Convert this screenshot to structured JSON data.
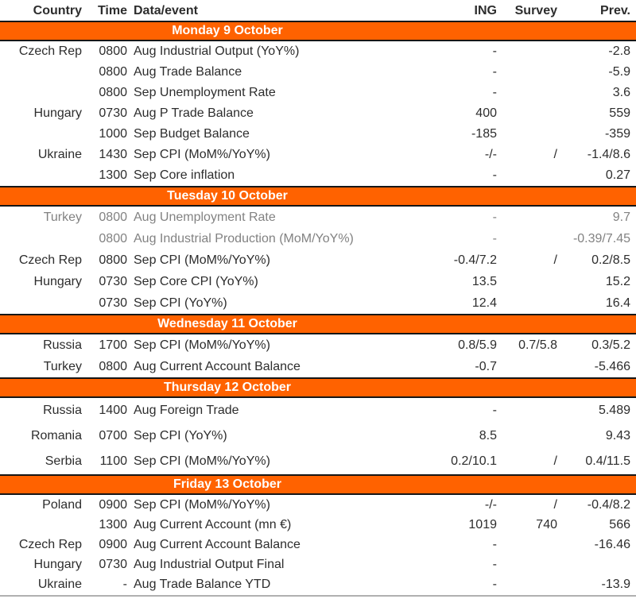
{
  "table": {
    "colors": {
      "accent": "#FF6200",
      "text": "#2d2d2d",
      "muted_text": "#828282",
      "banner_text": "#ffffff"
    },
    "columns": [
      "Country",
      "Time",
      "Data/event",
      "ING",
      "Survey",
      "Prev."
    ],
    "sections": [
      {
        "title": "Monday 9 October",
        "rows": [
          {
            "country": "Czech Rep",
            "time": "0800",
            "event": "Aug Industrial Output (YoY%)",
            "ing": "-",
            "survey": "",
            "prev": "-2.8"
          },
          {
            "country": "",
            "time": "0800",
            "event": "Aug Trade Balance",
            "ing": "-",
            "survey": "",
            "prev": "-5.9"
          },
          {
            "country": "",
            "time": "0800",
            "event": "Sep Unemployment Rate",
            "ing": "-",
            "survey": "",
            "prev": "3.6"
          },
          {
            "country": "Hungary",
            "time": "0730",
            "event": "Aug P Trade Balance",
            "ing": "400",
            "survey": "",
            "prev": "559"
          },
          {
            "country": "",
            "time": "1000",
            "event": "Sep Budget Balance",
            "ing": "-185",
            "survey": "",
            "prev": "-359"
          },
          {
            "country": "Ukraine",
            "time": "1430",
            "event": "Sep CPI (MoM%/YoY%)",
            "ing": "-/-",
            "survey": "/",
            "prev": "-1.4/8.6"
          },
          {
            "country": "",
            "time": "1300",
            "event": "Sep Core inflation",
            "ing": "-",
            "survey": "",
            "prev": "0.27"
          }
        ]
      },
      {
        "title": "Tuesday 10 October",
        "rows": [
          {
            "country": "Turkey",
            "time": "0800",
            "event": "Aug Unemployment Rate",
            "ing": "-",
            "survey": "",
            "prev": "9.7",
            "muted": true
          },
          {
            "country": "",
            "time": "0800",
            "event": "Aug Industrial Production (MoM/YoY%)",
            "ing": "-",
            "survey": "",
            "prev": "-0.39/7.45",
            "muted": true
          },
          {
            "country": "Czech Rep",
            "time": "0800",
            "event": "Sep CPI (MoM%/YoY%)",
            "ing": "-0.4/7.2",
            "survey": "/",
            "prev": "0.2/8.5"
          },
          {
            "country": "Hungary",
            "time": "0730",
            "event": "Sep Core CPI (YoY%)",
            "ing": "13.5",
            "survey": "",
            "prev": "15.2"
          },
          {
            "country": "",
            "time": "0730",
            "event": "Sep CPI (YoY%)",
            "ing": "12.4",
            "survey": "",
            "prev": "16.4"
          }
        ]
      },
      {
        "title": "Wednesday 11 October",
        "rows": [
          {
            "country": "Russia",
            "time": "1700",
            "event": "Sep CPI (MoM%/YoY%)",
            "ing": "0.8/5.9",
            "survey": "0.7/5.8",
            "prev": "0.3/5.2"
          },
          {
            "country": "Turkey",
            "time": "0800",
            "event": "Aug Current Account Balance",
            "ing": "-0.7",
            "survey": "",
            "prev": "-5.466"
          }
        ]
      },
      {
        "title": "Thursday 12 October",
        "rows": [
          {
            "country": "Russia",
            "time": "1400",
            "event": "Aug Foreign Trade",
            "ing": "-",
            "survey": "",
            "prev": "5.489"
          },
          {
            "country": "Romania",
            "time": "0700",
            "event": "Sep CPI (YoY%)",
            "ing": "8.5",
            "survey": "",
            "prev": "9.43"
          },
          {
            "country": "Serbia",
            "time": "1100",
            "event": "Sep CPI (MoM%/YoY%)",
            "ing": "0.2/10.1",
            "survey": "/",
            "prev": "0.4/11.5"
          }
        ]
      },
      {
        "title": "Friday 13 October",
        "rows": [
          {
            "country": "Poland",
            "time": "0900",
            "event": "Sep CPI (MoM%/YoY%)",
            "ing": "-/-",
            "survey": "/",
            "prev": "-0.4/8.2"
          },
          {
            "country": "",
            "time": "1300",
            "event": "Aug Current Account (mn €)",
            "ing": "1019",
            "survey": "740",
            "prev": "566"
          },
          {
            "country": "Czech Rep",
            "time": "0900",
            "event": "Aug Current Account Balance",
            "ing": "-",
            "survey": "",
            "prev": "-16.46"
          },
          {
            "country": "Hungary",
            "time": "0730",
            "event": "Aug Industrial Output Final",
            "ing": "-",
            "survey": "",
            "prev": ""
          },
          {
            "country": "Ukraine",
            "time": "-",
            "event": "Aug Trade Balance YTD",
            "ing": "-",
            "survey": "",
            "prev": "-13.9"
          }
        ]
      }
    ]
  }
}
